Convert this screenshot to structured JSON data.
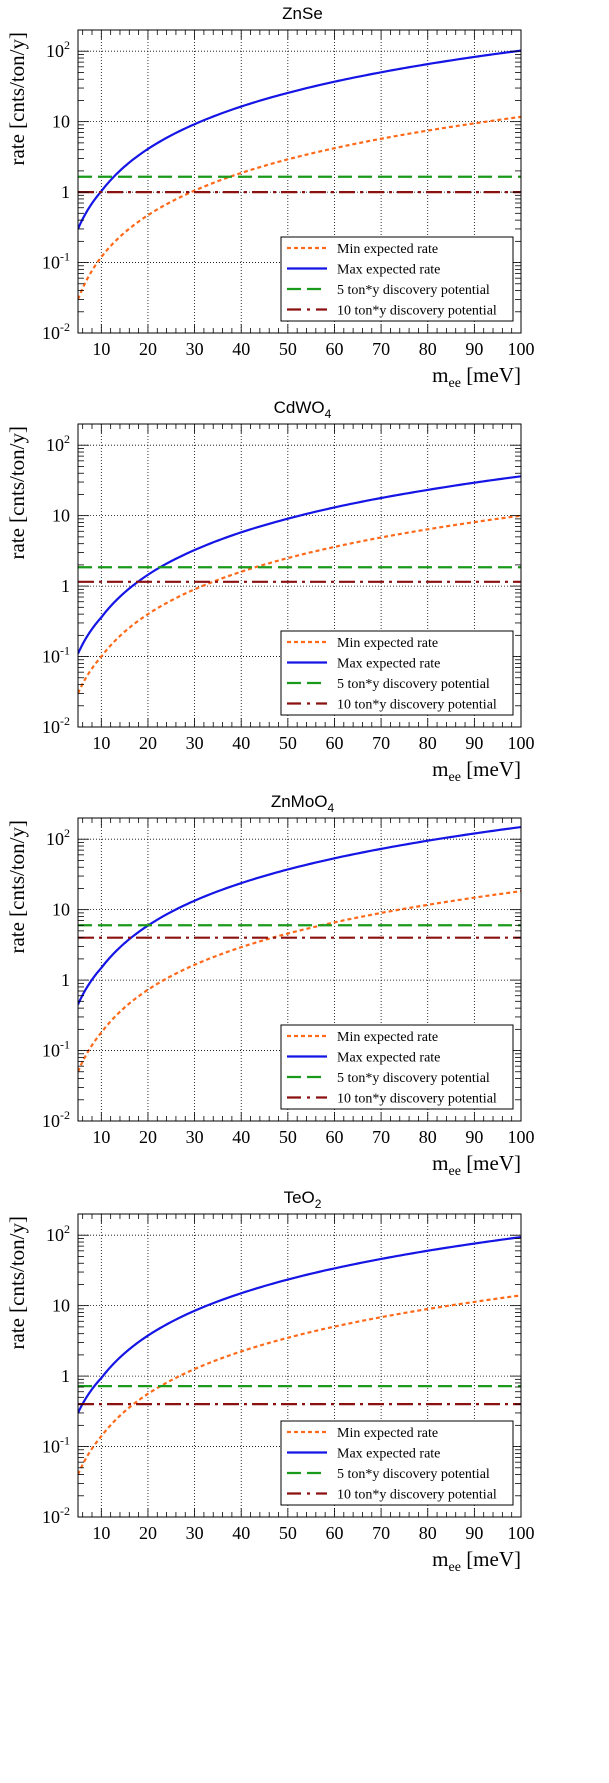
{
  "panels": [
    {
      "title": "ZnSe",
      "title_sub": "",
      "chart_data": {
        "type": "line",
        "title": "ZnSe",
        "xlabel": "m_ee [meV]",
        "ylabel": "rate [cnts/ton/y]",
        "xlim": [
          5,
          100
        ],
        "ylim": [
          0.01,
          200
        ],
        "yscale": "log",
        "grid": true,
        "legend_position": "bottom-right",
        "x_ticks": [
          10,
          20,
          30,
          40,
          50,
          60,
          70,
          80,
          90,
          100
        ],
        "series": [
          {
            "name": "Min expected rate",
            "style": "dotted",
            "color": "#ff6a1a",
            "x": [
              5,
              10,
              20,
              30,
              40,
              50,
              60,
              70,
              80,
              90,
              100
            ],
            "y": [
              0.03,
              0.12,
              0.47,
              1.05,
              1.87,
              2.92,
              4.2,
              5.72,
              7.47,
              9.45,
              11.7
            ]
          },
          {
            "name": "Max expected rate",
            "style": "solid",
            "color": "#1515e6",
            "x": [
              5,
              10,
              20,
              30,
              40,
              50,
              60,
              70,
              80,
              90,
              100
            ],
            "y": [
              0.3,
              1.03,
              4.1,
              9.2,
              16.4,
              25.6,
              36.9,
              50.2,
              65.6,
              83,
              102
            ]
          },
          {
            "name": "5 ton*y discovery potential",
            "style": "dashed",
            "color": "#1a9a1a",
            "x": [
              5,
              100
            ],
            "y": [
              1.65,
              1.65
            ]
          },
          {
            "name": "10 ton*y discovery potential",
            "style": "dashdot",
            "color": "#8b1010",
            "x": [
              5,
              100
            ],
            "y": [
              1.0,
              1.0
            ]
          }
        ]
      }
    },
    {
      "title": "CdWO",
      "title_sub": "4",
      "chart_data": {
        "type": "line",
        "title": "CdWO4",
        "xlabel": "m_ee [meV]",
        "ylabel": "rate [cnts/ton/y]",
        "xlim": [
          5,
          100
        ],
        "ylim": [
          0.01,
          200
        ],
        "yscale": "log",
        "grid": true,
        "legend_position": "bottom-right",
        "x_ticks": [
          10,
          20,
          30,
          40,
          50,
          60,
          70,
          80,
          90,
          100
        ],
        "series": [
          {
            "name": "Min expected rate",
            "style": "dotted",
            "color": "#ff6a1a",
            "x": [
              5,
              10,
              20,
              30,
              40,
              50,
              60,
              70,
              80,
              90,
              100
            ],
            "y": [
              0.03,
              0.1,
              0.4,
              0.9,
              1.6,
              2.5,
              3.6,
              4.9,
              6.4,
              8.1,
              10
            ]
          },
          {
            "name": "Max expected rate",
            "style": "solid",
            "color": "#1515e6",
            "x": [
              5,
              10,
              20,
              30,
              40,
              50,
              60,
              70,
              80,
              90,
              100
            ],
            "y": [
              0.11,
              0.36,
              1.45,
              3.25,
              5.8,
              9.05,
              13.1,
              17.8,
              23.2,
              29.4,
              36.2
            ]
          },
          {
            "name": "5 ton*y discovery potential",
            "style": "dashed",
            "color": "#1a9a1a",
            "x": [
              5,
              100
            ],
            "y": [
              1.85,
              1.85
            ]
          },
          {
            "name": "10 ton*y discovery potential",
            "style": "dashdot",
            "color": "#8b1010",
            "x": [
              5,
              100
            ],
            "y": [
              1.15,
              1.15
            ]
          }
        ]
      }
    },
    {
      "title": "ZnMoO",
      "title_sub": "4",
      "chart_data": {
        "type": "line",
        "title": "ZnMoO4",
        "xlabel": "m_ee [meV]",
        "ylabel": "rate [cnts/ton/y]",
        "xlim": [
          5,
          100
        ],
        "ylim": [
          0.01,
          200
        ],
        "yscale": "log",
        "grid": true,
        "legend_position": "bottom-right",
        "x_ticks": [
          10,
          20,
          30,
          40,
          50,
          60,
          70,
          80,
          90,
          100
        ],
        "series": [
          {
            "name": "Min expected rate",
            "style": "dotted",
            "color": "#ff6a1a",
            "x": [
              5,
              10,
              20,
              30,
              40,
              50,
              60,
              70,
              80,
              90,
              100
            ],
            "y": [
              0.05,
              0.18,
              0.73,
              1.65,
              2.93,
              4.58,
              6.6,
              8.98,
              11.7,
              14.8,
              18.3
            ]
          },
          {
            "name": "Max expected rate",
            "style": "solid",
            "color": "#1515e6",
            "x": [
              5,
              10,
              20,
              30,
              40,
              50,
              60,
              70,
              80,
              90,
              100
            ],
            "y": [
              0.45,
              1.49,
              5.95,
              13.4,
              23.8,
              37.2,
              53.6,
              72.9,
              95.2,
              120.5,
              148.8
            ]
          },
          {
            "name": "5 ton*y discovery potential",
            "style": "dashed",
            "color": "#1a9a1a",
            "x": [
              5,
              100
            ],
            "y": [
              6.0,
              6.0
            ]
          },
          {
            "name": "10 ton*y discovery potential",
            "style": "dashdot",
            "color": "#8b1010",
            "x": [
              5,
              100
            ],
            "y": [
              4.0,
              4.0
            ]
          }
        ]
      }
    },
    {
      "title": "TeO",
      "title_sub": "2",
      "chart_data": {
        "type": "line",
        "title": "TeO2",
        "xlabel": "m_ee [meV]",
        "ylabel": "rate [cnts/ton/y]",
        "xlim": [
          5,
          100
        ],
        "ylim": [
          0.01,
          200
        ],
        "yscale": "log",
        "grid": true,
        "legend_position": "bottom-right",
        "x_ticks": [
          10,
          20,
          30,
          40,
          50,
          60,
          70,
          80,
          90,
          100
        ],
        "series": [
          {
            "name": "Min expected rate",
            "style": "dotted",
            "color": "#ff6a1a",
            "x": [
              5,
              10,
              20,
              30,
              40,
              50,
              60,
              70,
              80,
              90,
              100
            ],
            "y": [
              0.04,
              0.14,
              0.56,
              1.26,
              2.24,
              3.5,
              5.04,
              6.86,
              8.96,
              11.3,
              14
            ]
          },
          {
            "name": "Max expected rate",
            "style": "solid",
            "color": "#1515e6",
            "x": [
              5,
              10,
              20,
              30,
              40,
              50,
              60,
              70,
              80,
              90,
              100
            ],
            "y": [
              0.3,
              0.94,
              3.76,
              8.46,
              15,
              23.5,
              33.8,
              46,
              60.2,
              76.1,
              94
            ]
          },
          {
            "name": "5 ton*y discovery potential",
            "style": "dashed",
            "color": "#1a9a1a",
            "x": [
              5,
              100
            ],
            "y": [
              0.72,
              0.72
            ]
          },
          {
            "name": "10 ton*y discovery potential",
            "style": "dashdot",
            "color": "#8b1010",
            "x": [
              5,
              100
            ],
            "y": [
              0.4,
              0.4
            ]
          }
        ]
      }
    }
  ],
  "axis_text": {
    "ylabel": "rate [cnts/ton/y]",
    "xlabel_main": "m",
    "xlabel_sub": "ee",
    "xlabel_unit": " [meV]",
    "y_tick_labels": [
      {
        "value": 0.01,
        "base": "10",
        "exp": "-2"
      },
      {
        "value": 0.1,
        "base": "10",
        "exp": "-1"
      },
      {
        "value": 1,
        "base": "1",
        "exp": ""
      },
      {
        "value": 10,
        "base": "10",
        "exp": ""
      },
      {
        "value": 100,
        "base": "10",
        "exp": "2"
      }
    ],
    "x_tick_labels": [
      "10",
      "20",
      "30",
      "40",
      "50",
      "60",
      "70",
      "80",
      "90",
      "100"
    ]
  }
}
